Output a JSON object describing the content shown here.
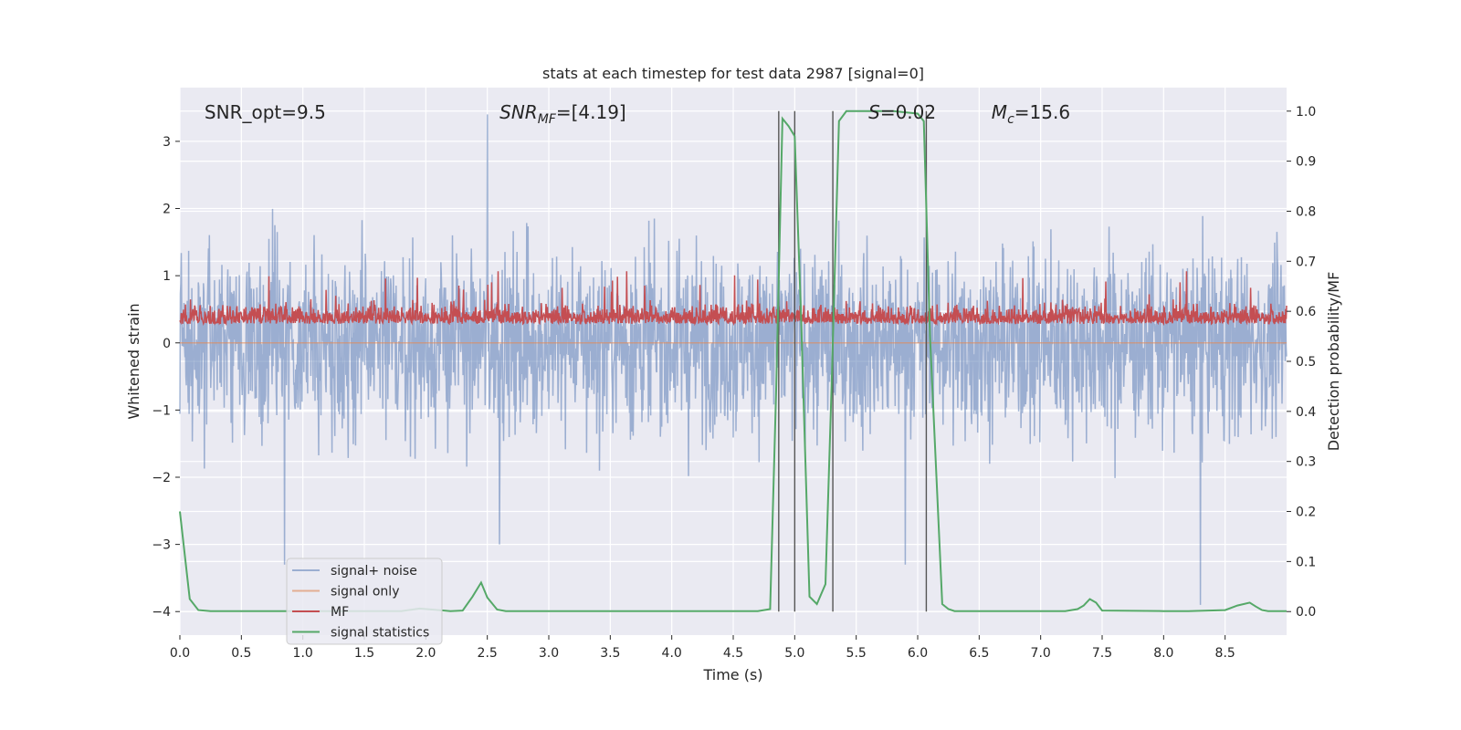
{
  "chart_data": {
    "type": "line",
    "title": "stats at each timestep for test data 2987 [signal=0]",
    "xlabel": "Time (s)",
    "ylabel": "Whitened strain",
    "y2label": "Detection probability/MF",
    "xlim": [
      0.0,
      9.0
    ],
    "ylim": [
      -4.35,
      3.8
    ],
    "y2lim": [
      -0.047,
      1.047
    ],
    "xticks": [
      "0.0",
      "0.5",
      "1.0",
      "1.5",
      "2.0",
      "2.5",
      "3.0",
      "3.5",
      "4.0",
      "4.5",
      "5.0",
      "5.5",
      "6.0",
      "6.5",
      "7.0",
      "7.5",
      "8.0",
      "8.5"
    ],
    "yticks": [
      "3",
      "2",
      "1",
      "0",
      "−1",
      "−2",
      "−3",
      "−4"
    ],
    "y2ticks": [
      "1.0",
      "0.9",
      "0.8",
      "0.7",
      "0.6",
      "0.5",
      "0.4",
      "0.3",
      "0.2",
      "0.1",
      "0.0"
    ],
    "grid": true,
    "legend_position": "lower-left",
    "annotations": [
      {
        "text": "SNR_opt=9.5",
        "x": 0.2,
        "y": 3.45
      },
      {
        "text": "SNR",
        "sub": "MF",
        "rest": "=[4.19]",
        "italic": true,
        "x": 2.6,
        "y": 3.45
      },
      {
        "text": "S",
        "rest": "=0.02",
        "italic": true,
        "x": 5.6,
        "y": 3.45
      },
      {
        "text": "M",
        "sub": "c",
        "rest": "=15.6",
        "italic": true,
        "x": 6.6,
        "y": 3.45
      }
    ],
    "vertical_lines": [
      4.87,
      5.0,
      5.31,
      6.07
    ],
    "series": [
      {
        "name": "signal+ noise",
        "color": "#4c72b0",
        "opacity": 0.5,
        "axis": "left",
        "kind": "noise",
        "envelope": [
          -1.75,
          1.9
        ],
        "spikes": [
          [
            2.5,
            3.4
          ],
          [
            0.85,
            -3.3
          ],
          [
            8.3,
            -3.9
          ],
          [
            2.6,
            -3.0
          ],
          [
            5.9,
            -3.3
          ]
        ]
      },
      {
        "name": "signal only",
        "color": "#dd8452",
        "opacity": 0.6,
        "axis": "left",
        "kind": "flat",
        "value": 0.0
      },
      {
        "name": "MF",
        "color": "#c44e52",
        "axis": "right",
        "kind": "mf",
        "range": [
          0.55,
          0.65
        ]
      },
      {
        "name": "signal statistics",
        "color": "#55a868",
        "axis": "right",
        "kind": "line",
        "x": [
          0.0,
          0.08,
          0.15,
          0.25,
          1.0,
          1.8,
          1.95,
          2.05,
          2.2,
          2.3,
          2.38,
          2.45,
          2.5,
          2.58,
          2.65,
          3.0,
          3.5,
          4.0,
          4.5,
          4.7,
          4.8,
          4.85,
          4.9,
          4.95,
          5.0,
          5.05,
          5.12,
          5.18,
          5.25,
          5.3,
          5.36,
          5.42,
          5.5,
          5.8,
          6.0,
          6.05,
          6.1,
          6.2,
          6.25,
          6.3,
          7.0,
          7.2,
          7.3,
          7.35,
          7.4,
          7.45,
          7.5,
          8.0,
          8.2,
          8.5,
          8.6,
          8.7,
          8.75,
          8.8,
          8.85,
          9.0
        ],
        "y": [
          0.2,
          0.025,
          0.003,
          0.001,
          0.001,
          0.001,
          0.006,
          0.004,
          0.001,
          0.002,
          0.03,
          0.058,
          0.028,
          0.004,
          0.001,
          0.001,
          0.001,
          0.001,
          0.001,
          0.001,
          0.005,
          0.45,
          0.985,
          0.97,
          0.95,
          0.6,
          0.03,
          0.015,
          0.055,
          0.45,
          0.98,
          1.0,
          1.0,
          1.0,
          0.995,
          0.98,
          0.55,
          0.015,
          0.005,
          0.001,
          0.001,
          0.001,
          0.005,
          0.012,
          0.025,
          0.018,
          0.002,
          0.001,
          0.001,
          0.003,
          0.012,
          0.018,
          0.01,
          0.003,
          0.001,
          0.001
        ]
      }
    ]
  }
}
